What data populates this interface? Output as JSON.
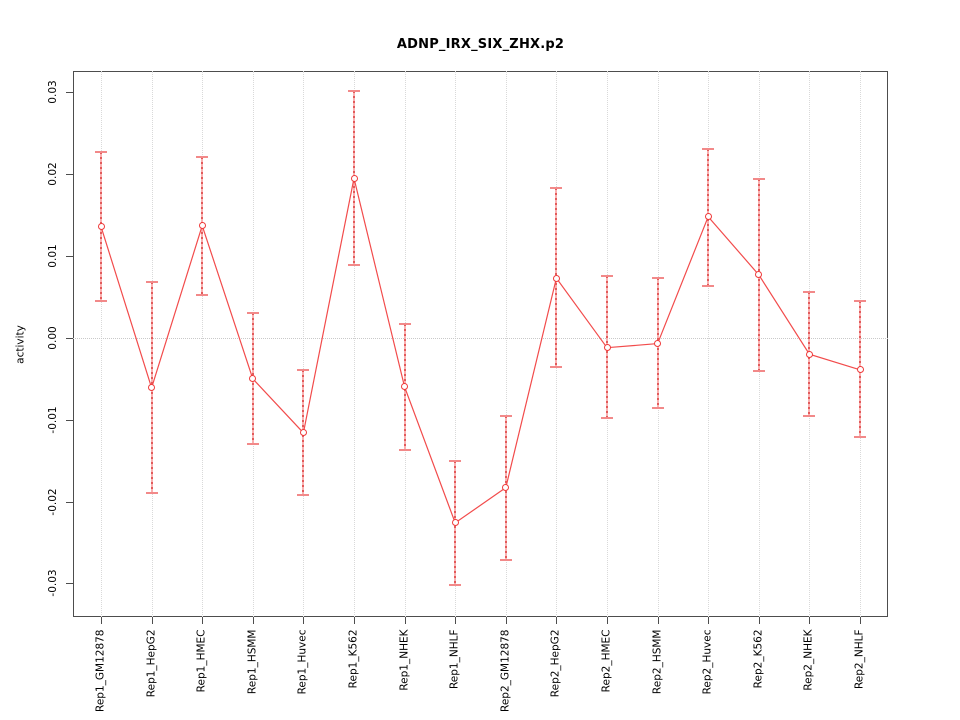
{
  "chart_data": {
    "type": "line",
    "title": "ADNP_IRX_SIX_ZHX.p2",
    "ylabel": "activity",
    "xlabel": "",
    "legend_position": "none",
    "point_style": "open-circle",
    "error_bars": true,
    "categories": [
      "Rep1_GM12878",
      "Rep1_HepG2",
      "Rep1_HMEC",
      "Rep1_HSMM",
      "Rep1_Huvec",
      "Rep1_K562",
      "Rep1_NHEK",
      "Rep1_NHLF",
      "Rep2_GM12878",
      "Rep2_HepG2",
      "Rep2_HMEC",
      "Rep2_HSMM",
      "Rep2_Huvec",
      "Rep2_K562",
      "Rep2_NHEK",
      "Rep2_NHLF"
    ],
    "series": [
      {
        "name": "activity",
        "values": [
          0.0136,
          -0.0061,
          0.0137,
          -0.005,
          -0.0116,
          0.0195,
          -0.006,
          -0.0226,
          -0.0183,
          0.0073,
          -0.0012,
          -0.0007,
          0.0148,
          0.0077,
          -0.002,
          -0.0039
        ],
        "upper": [
          0.0227,
          0.0068,
          0.0221,
          0.003,
          -0.0039,
          0.0301,
          0.0017,
          -0.015,
          -0.0096,
          0.0183,
          0.0075,
          0.0073,
          0.0231,
          0.0194,
          0.0056,
          0.0045
        ],
        "lower": [
          0.0045,
          -0.019,
          0.0052,
          -0.013,
          -0.0192,
          0.0089,
          -0.0137,
          -0.0302,
          -0.0271,
          -0.0035,
          -0.0098,
          -0.0086,
          0.0063,
          -0.004,
          -0.0095,
          -0.0121
        ]
      }
    ],
    "ylim": [
      -0.0341,
      0.0326
    ],
    "yticks": [
      0.03,
      0.02,
      0.01,
      0.0,
      -0.01,
      -0.02,
      -0.03
    ],
    "ytick_labels": [
      "0.03",
      "0.02",
      "0.01",
      "0.00",
      "-0.01",
      "-0.02",
      "-0.03"
    ],
    "grid": {
      "vertical": "dotted line at every category",
      "horizontal": "dotted line at zero only"
    },
    "colors": {
      "line": "#f24b4b",
      "point": "#ef3b3b",
      "error_stem": "#f9b0b0",
      "error_stem_dash": "#e25a5a",
      "error_cap": "#f28989",
      "grid_vertical": "#d9d9d9",
      "grid_zero": "#c9c9c9",
      "frame": "#4d4d4d",
      "text": "#000000"
    }
  }
}
